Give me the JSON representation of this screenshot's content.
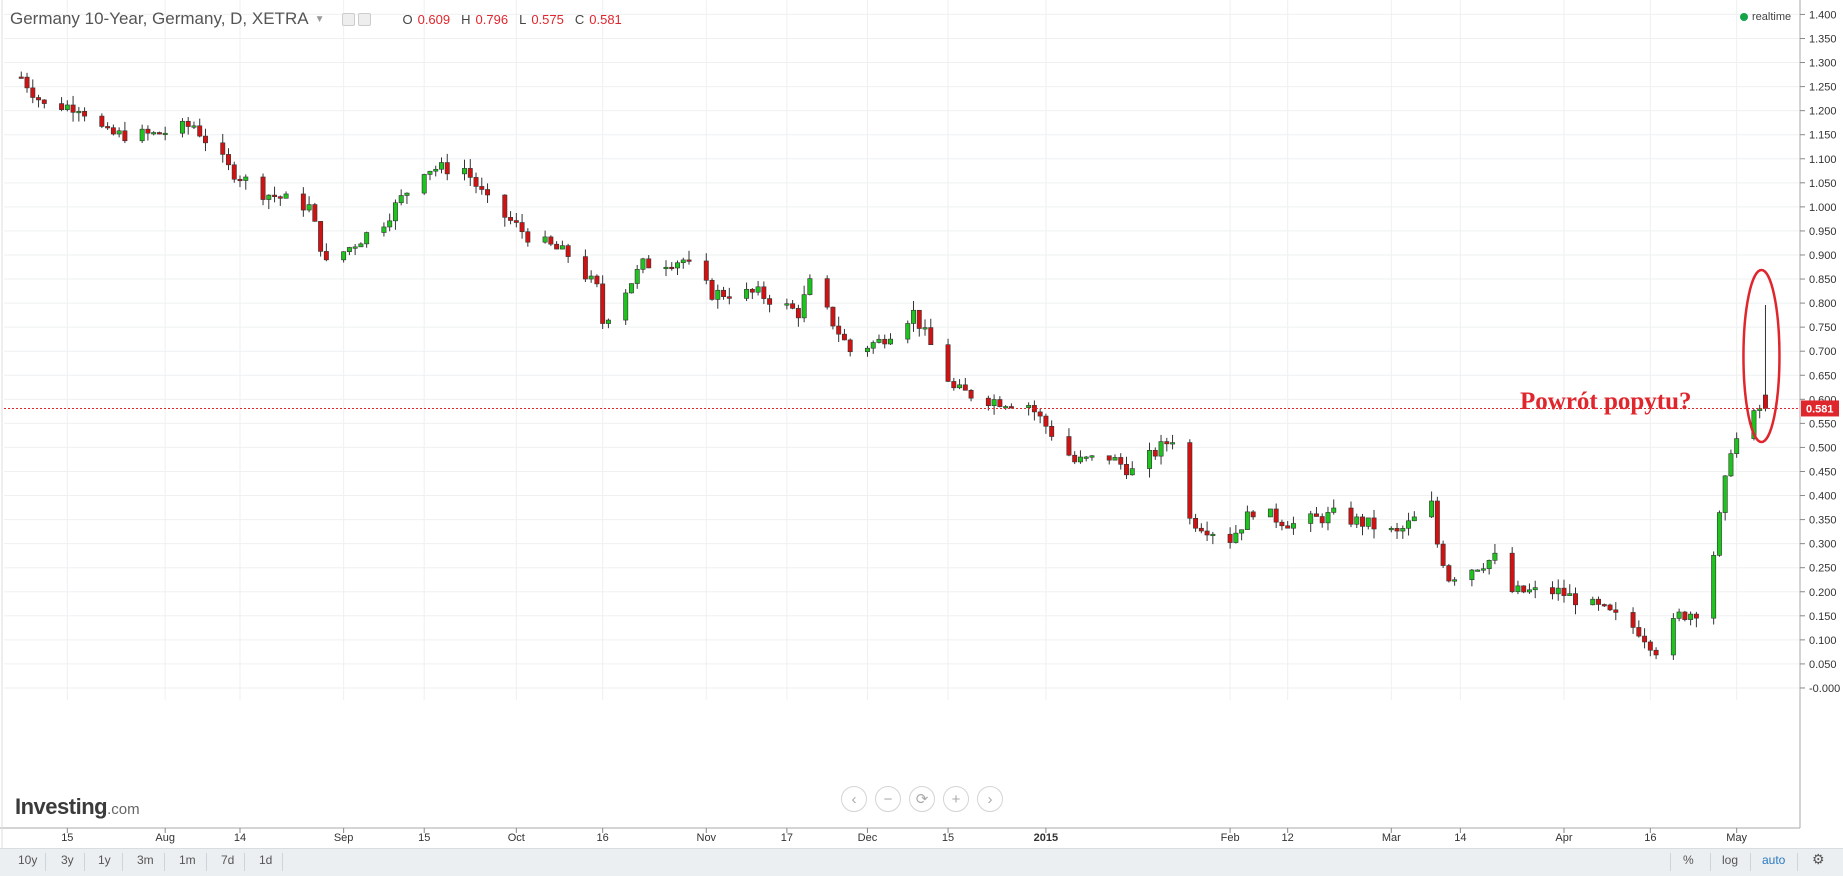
{
  "header": {
    "title": "Germany 10-Year, Germany, D, XETRA",
    "ohlc": [
      {
        "key": "O",
        "value": "0.609"
      },
      {
        "key": "H",
        "value": "0.796"
      },
      {
        "key": "L",
        "value": "0.575"
      },
      {
        "key": "C",
        "value": "0.581"
      }
    ],
    "realtime_label": "realtime"
  },
  "annotation": "Powrót popytu?",
  "logo": {
    "main": "Investing",
    "suffix": ".com"
  },
  "nav_controls": [
    "‹",
    "−",
    "⟳",
    "+",
    "›"
  ],
  "bottom_bar": {
    "ranges": [
      "10y",
      "3y",
      "1y",
      "3m",
      "1m",
      "7d",
      "1d"
    ],
    "right_options": [
      "%",
      "log",
      "auto"
    ],
    "active_option": "auto",
    "settings_icon": "gear-icon"
  },
  "colors": {
    "up": "#1ec31e",
    "down": "#d21212",
    "accent": "#e0262d",
    "grid": "#eef0f2"
  },
  "chart_data": {
    "type": "candlestick",
    "ylim": [
      -0.025,
      1.43
    ],
    "y_ticks": [
      "1.400",
      "1.350",
      "1.300",
      "1.250",
      "1.200",
      "1.150",
      "1.100",
      "1.050",
      "1.000",
      "0.950",
      "0.900",
      "0.850",
      "0.800",
      "0.750",
      "0.700",
      "0.650",
      "0.600",
      "0.550",
      "0.500",
      "0.450",
      "0.400",
      "0.350",
      "0.300",
      "0.250",
      "0.200",
      "0.150",
      "0.100",
      "0.050",
      "-0.000"
    ],
    "x_ticks": [
      {
        "label": "15",
        "date": "2014-07-15"
      },
      {
        "label": "Aug",
        "date": "2014-08-01"
      },
      {
        "label": "14",
        "date": "2014-08-14"
      },
      {
        "label": "Sep",
        "date": "2014-09-01"
      },
      {
        "label": "15",
        "date": "2014-09-15"
      },
      {
        "label": "Oct",
        "date": "2014-10-01"
      },
      {
        "label": "16",
        "date": "2014-10-16"
      },
      {
        "label": "Nov",
        "date": "2014-11-03"
      },
      {
        "label": "17",
        "date": "2014-11-17"
      },
      {
        "label": "Dec",
        "date": "2014-12-01"
      },
      {
        "label": "15",
        "date": "2014-12-15"
      },
      {
        "label": "2015",
        "date": "2015-01-01"
      },
      {
        "label": "Feb",
        "date": "2015-02-02"
      },
      {
        "label": "12",
        "date": "2015-02-12"
      },
      {
        "label": "Mar",
        "date": "2015-03-02"
      },
      {
        "label": "14",
        "date": "2015-03-14"
      },
      {
        "label": "Apr",
        "date": "2015-04-01"
      },
      {
        "label": "16",
        "date": "2015-04-16"
      },
      {
        "label": "May",
        "date": "2015-05-01"
      }
    ],
    "last_price": "0.581",
    "close_path": [
      [
        "2014-07-07",
        1.27
      ],
      [
        "2014-07-11",
        1.21
      ],
      [
        "2014-07-17",
        1.21
      ],
      [
        "2014-07-22",
        1.15
      ],
      [
        "2014-07-30",
        1.15
      ],
      [
        "2014-08-06",
        1.17
      ],
      [
        "2014-08-12",
        1.08
      ],
      [
        "2014-08-18",
        1.03
      ],
      [
        "2014-08-26",
        1.0
      ],
      [
        "2014-08-29",
        0.88
      ],
      [
        "2014-09-08",
        0.97
      ],
      [
        "2014-09-15",
        1.08
      ],
      [
        "2014-09-22",
        1.08
      ],
      [
        "2014-09-26",
        1.01
      ],
      [
        "2014-10-03",
        0.94
      ],
      [
        "2014-10-10",
        0.9
      ],
      [
        "2014-10-15",
        0.83
      ],
      [
        "2014-10-16",
        0.76
      ],
      [
        "2014-10-23",
        0.88
      ],
      [
        "2014-10-30",
        0.89
      ],
      [
        "2014-11-04",
        0.82
      ],
      [
        "2014-11-12",
        0.82
      ],
      [
        "2014-11-19",
        0.78
      ],
      [
        "2014-11-21",
        0.84
      ],
      [
        "2014-11-28",
        0.7
      ],
      [
        "2014-12-03",
        0.72
      ],
      [
        "2014-12-09",
        0.78
      ],
      [
        "2014-12-16",
        0.62
      ],
      [
        "2014-12-22",
        0.6
      ],
      [
        "2014-12-29",
        0.59
      ],
      [
        "2015-01-02",
        0.53
      ],
      [
        "2015-01-06",
        0.47
      ],
      [
        "2015-01-12",
        0.48
      ],
      [
        "2015-01-16",
        0.45
      ],
      [
        "2015-01-23",
        0.52
      ],
      [
        "2015-01-26",
        0.35
      ],
      [
        "2015-02-02",
        0.31
      ],
      [
        "2015-02-06",
        0.37
      ],
      [
        "2015-02-13",
        0.34
      ],
      [
        "2015-02-20",
        0.36
      ],
      [
        "2015-02-26",
        0.34
      ],
      [
        "2015-03-03",
        0.32
      ],
      [
        "2015-03-09",
        0.38
      ],
      [
        "2015-03-10",
        0.3
      ],
      [
        "2015-03-12",
        0.23
      ],
      [
        "2015-03-18",
        0.26
      ],
      [
        "2015-03-20",
        0.27
      ],
      [
        "2015-03-23",
        0.2
      ],
      [
        "2015-03-31",
        0.2
      ],
      [
        "2015-04-08",
        0.16
      ],
      [
        "2015-04-14",
        0.12
      ],
      [
        "2015-04-17",
        0.08
      ],
      [
        "2015-04-21",
        0.15
      ],
      [
        "2015-04-24",
        0.16
      ],
      [
        "2015-04-27",
        0.28
      ],
      [
        "2015-04-30",
        0.5
      ],
      [
        "2015-05-05",
        0.58
      ],
      [
        "2015-05-06",
        0.581
      ]
    ],
    "last_candle": {
      "date": "2015-05-06",
      "open": 0.609,
      "high": 0.796,
      "low": 0.575,
      "close": 0.581
    }
  }
}
